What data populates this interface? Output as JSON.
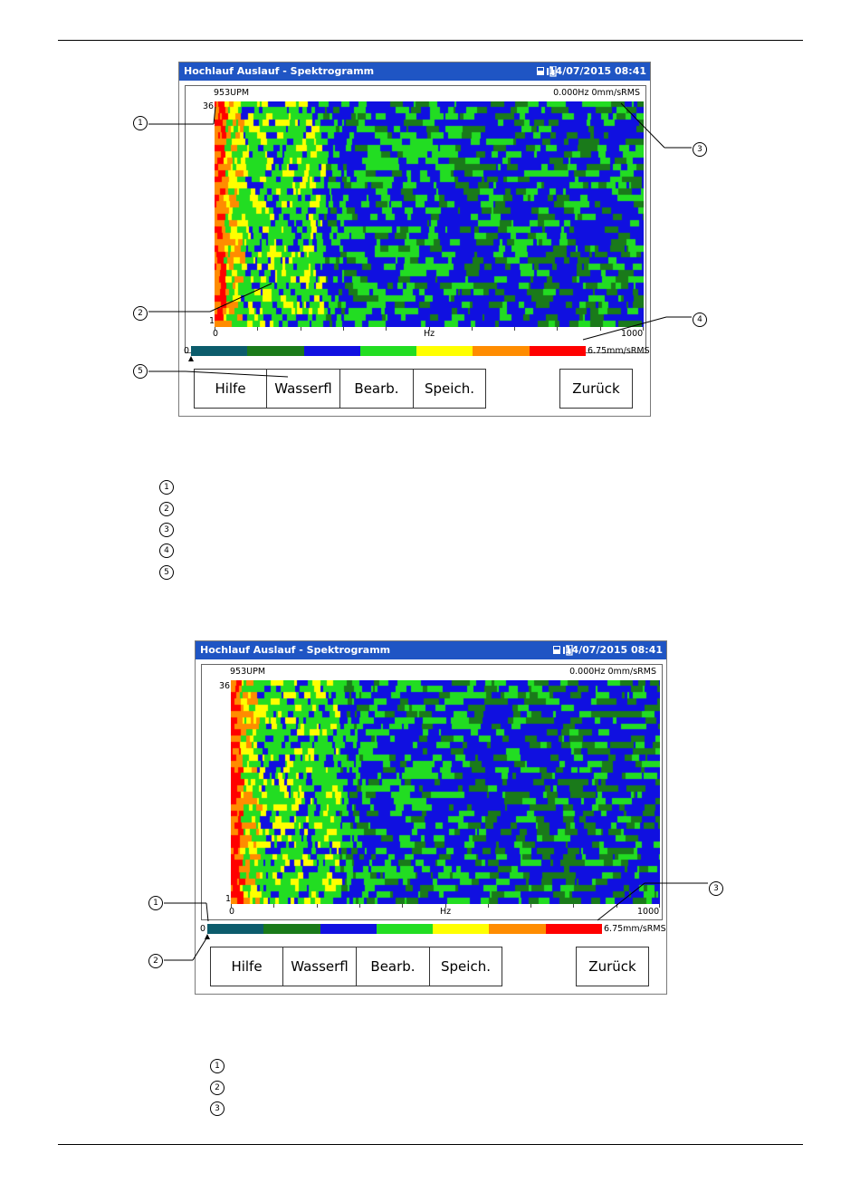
{
  "screens": [
    {
      "title": "Hochlauf Auslauf - Spektrogramm",
      "datetime": "14/07/2015 08:41",
      "speed": "953UPM",
      "readout": "0.000Hz  0mm/sRMS",
      "y_top": "36",
      "y_bottom": "1",
      "x_start": "0",
      "x_unit": "Hz",
      "x_end": "1000",
      "scale_min": "0",
      "scale_max": "6.75mm/sRMS",
      "buttons": [
        "Hilfe",
        "Wasserfl",
        "Bearb.",
        "Speich.",
        "Zurück"
      ],
      "callouts": [
        "1",
        "2",
        "3",
        "4",
        "5"
      ]
    },
    {
      "title": "Hochlauf Auslauf - Spektrogramm",
      "datetime": "14/07/2015 08:41",
      "speed": "953UPM",
      "readout": "0.000Hz  0mm/sRMS",
      "y_top": "36",
      "y_bottom": "1",
      "x_start": "0",
      "x_unit": "Hz",
      "x_end": "1000",
      "scale_min": "0",
      "scale_max": "6.75mm/sRMS",
      "buttons": [
        "Hilfe",
        "Wasserfl",
        "Bearb.",
        "Speich.",
        "Zurück"
      ],
      "callouts": [
        "1",
        "2",
        "3"
      ]
    }
  ],
  "legend1": [
    "1",
    "2",
    "3",
    "4",
    "5"
  ],
  "legend2": [
    "1",
    "2",
    "3"
  ],
  "color_scale": [
    "#0c5c6c",
    "#1a7a1a",
    "#1010e0",
    "#22dd22",
    "#ffff00",
    "#ff8c00",
    "#ff0000"
  ]
}
